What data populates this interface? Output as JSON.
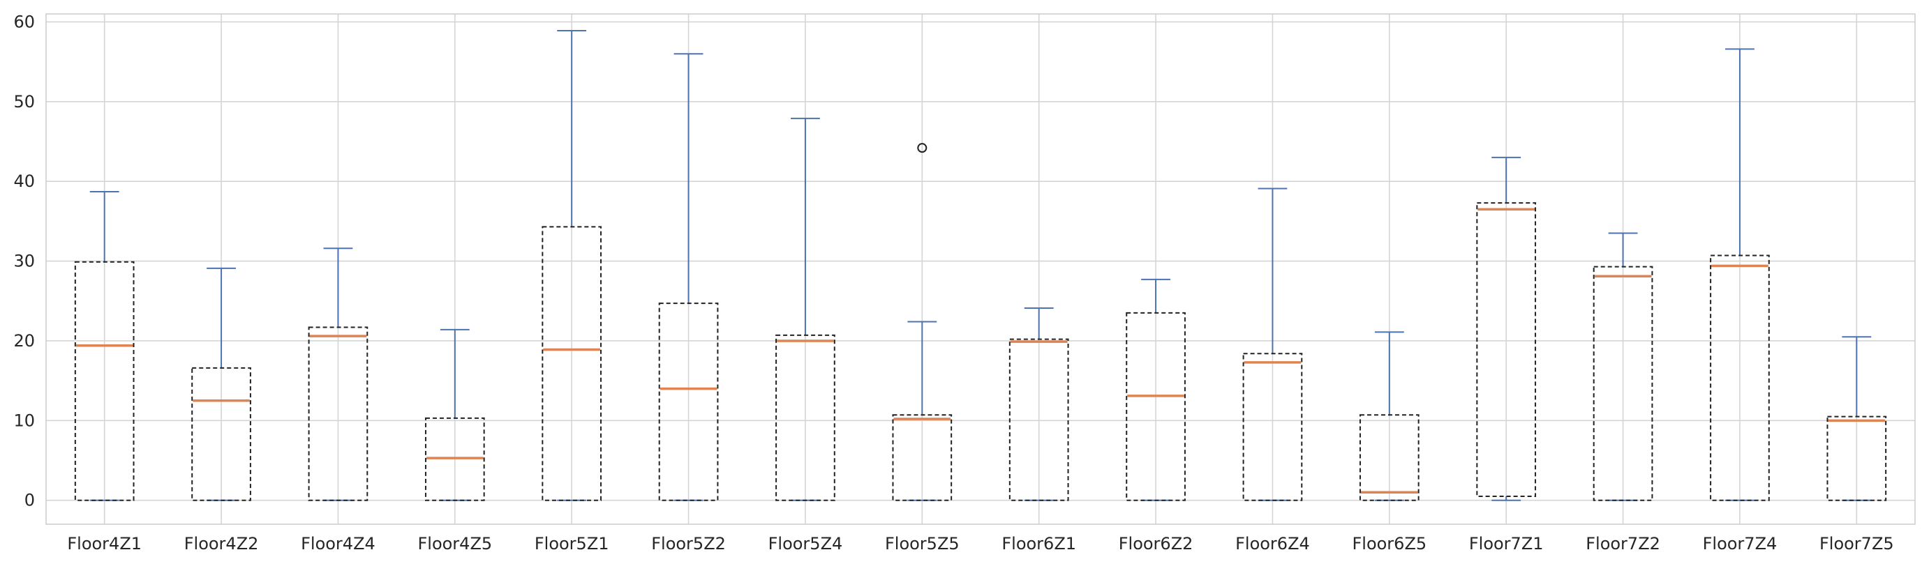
{
  "chart_data": {
    "type": "box",
    "grid": true,
    "ylim": [
      -3,
      61
    ],
    "yticks": [
      0,
      10,
      20,
      30,
      40,
      50,
      60
    ],
    "categories": [
      "Floor4Z1",
      "Floor4Z2",
      "Floor4Z4",
      "Floor4Z5",
      "Floor5Z1",
      "Floor5Z2",
      "Floor5Z4",
      "Floor5Z5",
      "Floor6Z1",
      "Floor6Z2",
      "Floor6Z4",
      "Floor6Z5",
      "Floor7Z1",
      "Floor7Z2",
      "Floor7Z4",
      "Floor7Z5"
    ],
    "boxes": [
      {
        "whislo": 0,
        "q1": 0,
        "med": 19.4,
        "q3": 29.9,
        "whishi": 38.7,
        "fliers": []
      },
      {
        "whislo": 0,
        "q1": 0,
        "med": 12.5,
        "q3": 16.6,
        "whishi": 29.1,
        "fliers": []
      },
      {
        "whislo": 0,
        "q1": 0,
        "med": 20.6,
        "q3": 21.7,
        "whishi": 31.6,
        "fliers": []
      },
      {
        "whislo": 0,
        "q1": 0,
        "med": 5.3,
        "q3": 10.3,
        "whishi": 21.4,
        "fliers": []
      },
      {
        "whislo": 0,
        "q1": 0,
        "med": 18.9,
        "q3": 34.3,
        "whishi": 58.9,
        "fliers": []
      },
      {
        "whislo": 0,
        "q1": 0,
        "med": 14.0,
        "q3": 24.7,
        "whishi": 56.0,
        "fliers": []
      },
      {
        "whislo": 0,
        "q1": 0,
        "med": 20.0,
        "q3": 20.7,
        "whishi": 47.9,
        "fliers": []
      },
      {
        "whislo": 0,
        "q1": 0,
        "med": 10.2,
        "q3": 10.7,
        "whishi": 22.4,
        "fliers": [
          44.2
        ]
      },
      {
        "whislo": 0,
        "q1": 0,
        "med": 19.9,
        "q3": 20.2,
        "whishi": 24.1,
        "fliers": []
      },
      {
        "whislo": 0,
        "q1": 0,
        "med": 13.1,
        "q3": 23.5,
        "whishi": 27.7,
        "fliers": []
      },
      {
        "whislo": 0,
        "q1": 0,
        "med": 17.3,
        "q3": 18.4,
        "whishi": 39.1,
        "fliers": []
      },
      {
        "whislo": 0,
        "q1": 0,
        "med": 1.0,
        "q3": 10.7,
        "whishi": 21.1,
        "fliers": []
      },
      {
        "whislo": 0,
        "q1": 0.5,
        "med": 36.5,
        "q3": 37.3,
        "whishi": 43.0,
        "fliers": []
      },
      {
        "whislo": 0,
        "q1": 0,
        "med": 28.1,
        "q3": 29.3,
        "whishi": 33.5,
        "fliers": []
      },
      {
        "whislo": 0,
        "q1": 0,
        "med": 29.4,
        "q3": 30.7,
        "whishi": 56.6,
        "fliers": []
      },
      {
        "whislo": 0,
        "q1": 0,
        "med": 10.0,
        "q3": 10.5,
        "whishi": 20.5,
        "fliers": []
      }
    ],
    "colors": {
      "box": "#222222",
      "whisker": "#4c72b0",
      "median": "#dd8452",
      "grid": "#d5d5d5"
    }
  }
}
